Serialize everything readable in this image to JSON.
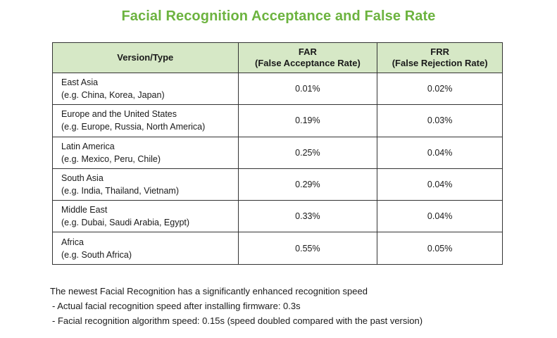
{
  "title": "Facial Recognition Acceptance and False Rate",
  "table": {
    "headers": {
      "version": "Version/Type",
      "far_line1": "FAR",
      "far_line2": "(False Acceptance Rate)",
      "frr_line1": "FRR",
      "frr_line2": "(False Rejection Rate)"
    },
    "rows": [
      {
        "region": "East Asia",
        "examples": "(e.g. China, Korea, Japan)",
        "far": "0.01%",
        "frr": "0.02%"
      },
      {
        "region": "Europe and the United States",
        "examples": "(e.g. Europe, Russia, North America)",
        "far": "0.19%",
        "frr": "0.03%"
      },
      {
        "region": "Latin America",
        "examples": "(e.g. Mexico, Peru, Chile)",
        "far": "0.25%",
        "frr": "0.04%"
      },
      {
        "region": "South Asia",
        "examples": "(e.g. India, Thailand, Vietnam)",
        "far": "0.29%",
        "frr": "0.04%"
      },
      {
        "region": "Middle East",
        "examples": "(e.g. Dubai, Saudi Arabia, Egypt)",
        "far": "0.33%",
        "frr": "0.04%"
      },
      {
        "region": "Africa",
        "examples": "(e.g. South Africa)",
        "far": "0.55%",
        "frr": "0.05%"
      }
    ]
  },
  "notes": {
    "intro": "The newest Facial Recognition has a significantly enhanced recognition speed",
    "bullets": [
      "- Actual facial recognition speed after installing firmware: 0.3s",
      "- Facial recognition algorithm speed: 0.15s (speed doubled compared with the past version)"
    ]
  }
}
